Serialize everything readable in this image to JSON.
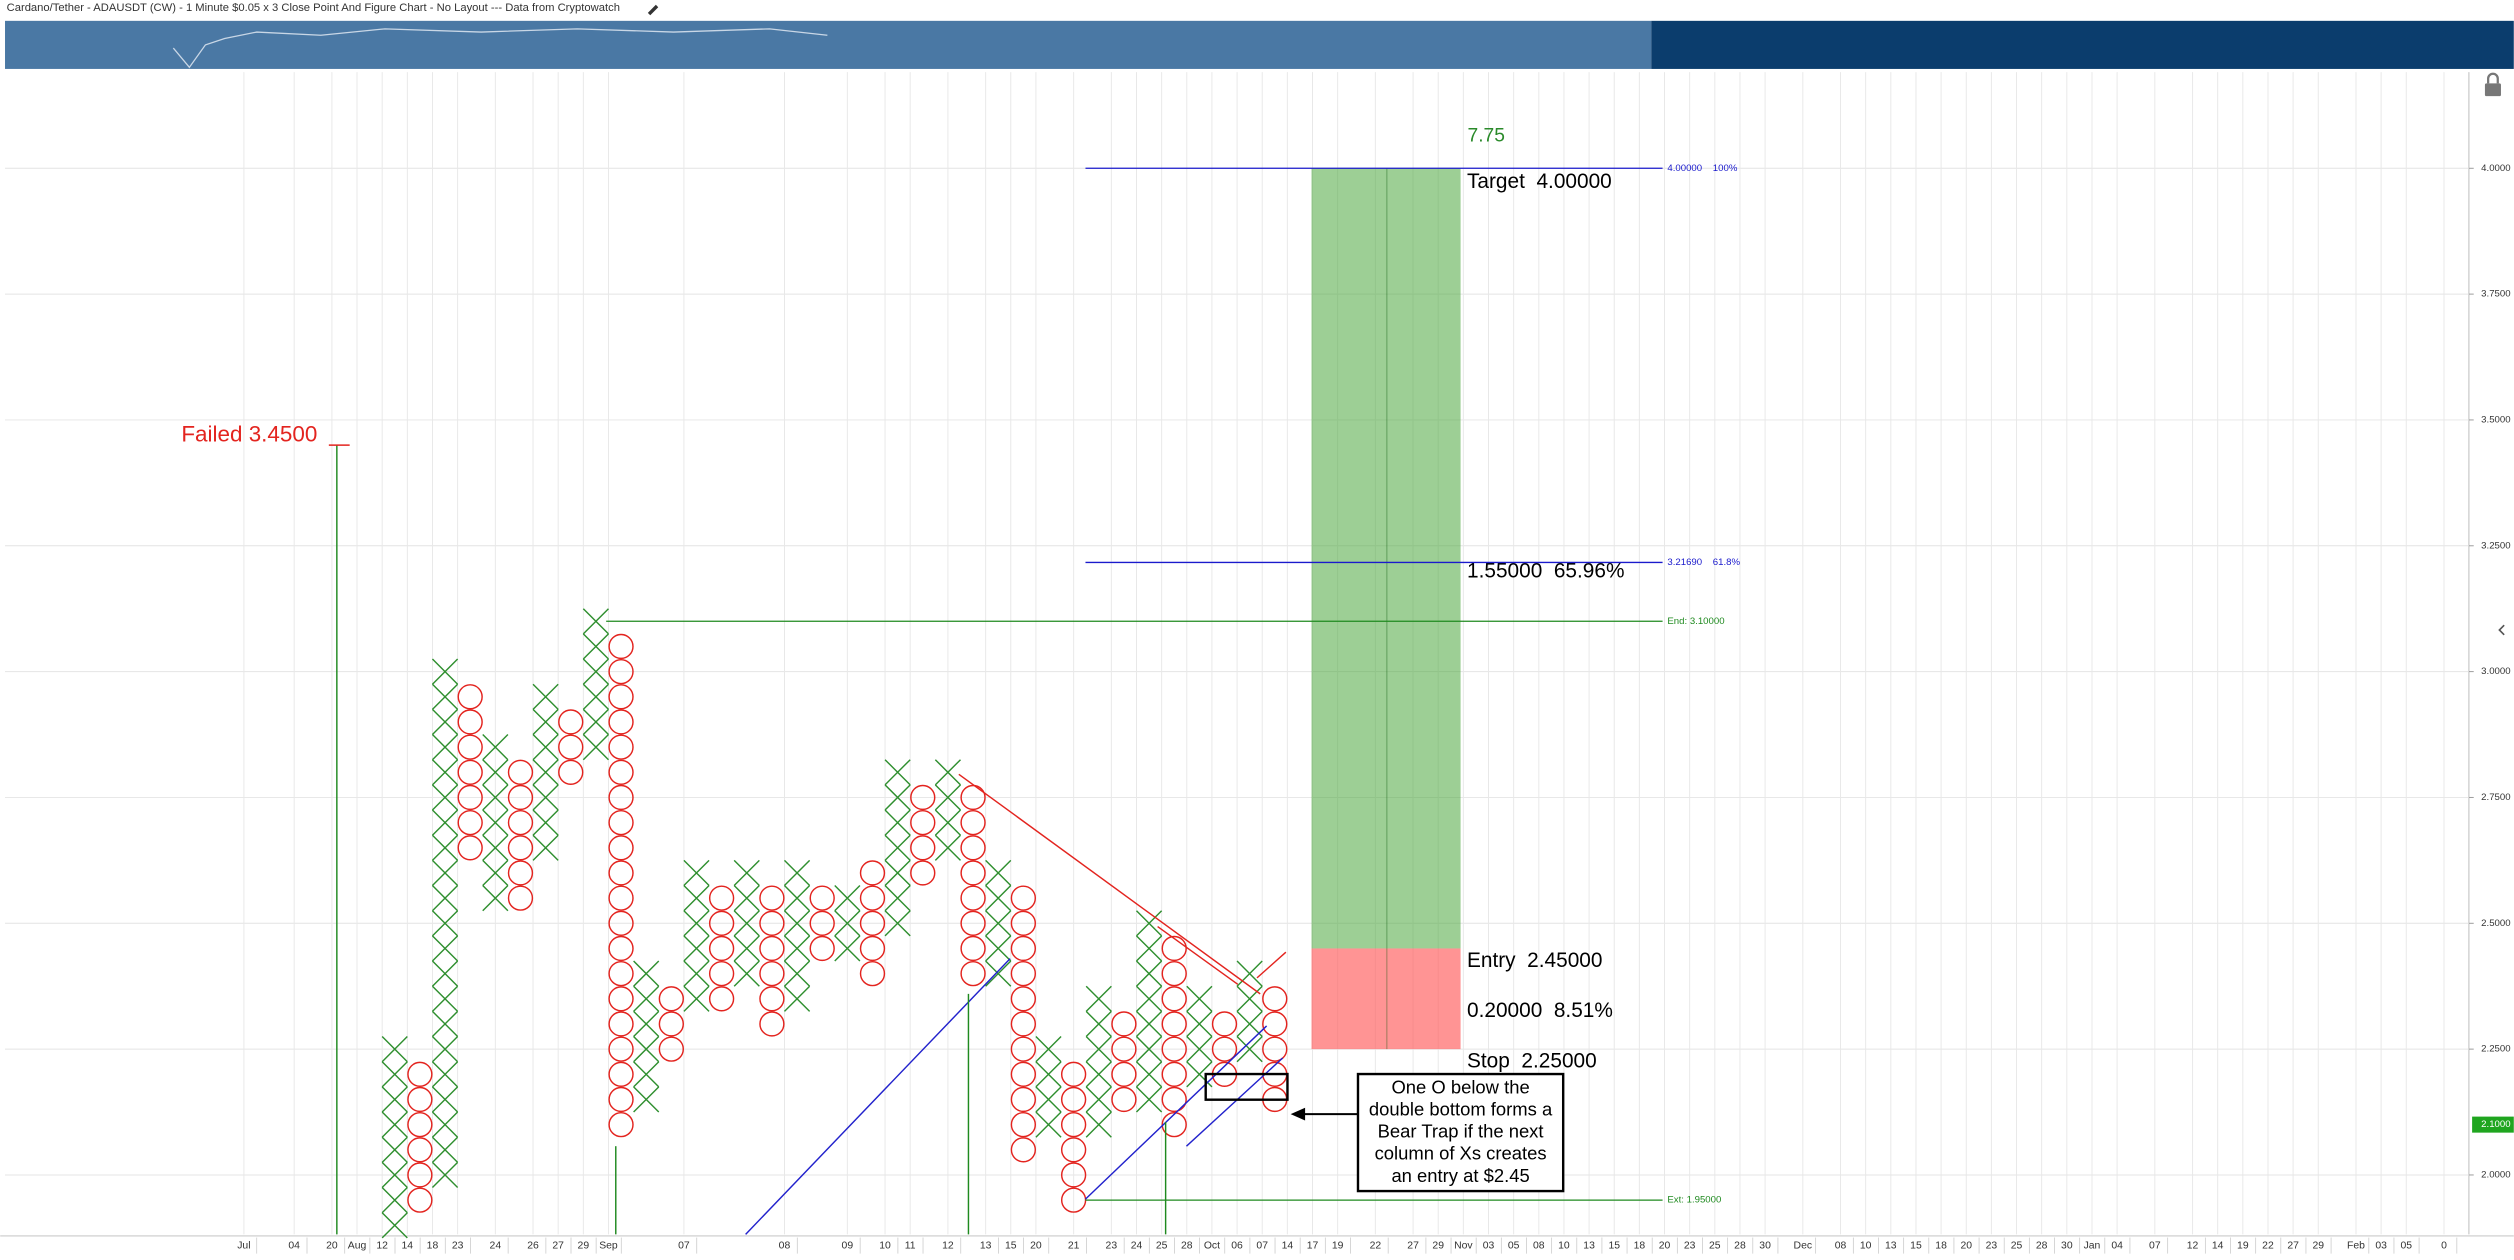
{
  "chart_data": {
    "type": "point-and-figure",
    "title": "Cardano/Tether - ADAUSDT (CW) - 1 Minute $0.05 x 3 Close Point And Figure Chart - No Layout --- Data from Cryptowatch",
    "box_size": 0.05,
    "x_color": "#2f8f2f",
    "o_color": "#e3241f",
    "grid": true,
    "ylim": [
      1.882,
      4.191
    ],
    "yticks": [
      {
        "value": 2.0,
        "label": "2.0000"
      },
      {
        "value": 2.25,
        "label": "2.2500"
      },
      {
        "value": 2.5,
        "label": "2.5000"
      },
      {
        "value": 2.75,
        "label": "2.7500"
      },
      {
        "value": 3.0,
        "label": "3.0000"
      },
      {
        "value": 3.25,
        "label": "3.2500"
      },
      {
        "value": 3.5,
        "label": "3.5000"
      },
      {
        "value": 3.75,
        "label": "3.7500"
      },
      {
        "value": 4.0,
        "label": "4.0000"
      }
    ],
    "xlim": [
      -15.5,
      82.3
    ],
    "xticks": [
      {
        "value": -6,
        "label": "Jul"
      },
      {
        "value": -4,
        "label": "04"
      },
      {
        "value": -2.5,
        "label": "20"
      },
      {
        "value": -1.5,
        "label": "Aug"
      },
      {
        "value": -0.5,
        "label": "12"
      },
      {
        "value": 0.5,
        "label": "14"
      },
      {
        "value": 1.5,
        "label": "18"
      },
      {
        "value": 2.5,
        "label": "23"
      },
      {
        "value": 4,
        "label": "24"
      },
      {
        "value": 5.5,
        "label": "26"
      },
      {
        "value": 6.5,
        "label": "27"
      },
      {
        "value": 7.5,
        "label": "29"
      },
      {
        "value": 8.5,
        "label": "Sep"
      },
      {
        "value": 11.5,
        "label": "07"
      },
      {
        "value": 15.5,
        "label": "08"
      },
      {
        "value": 18,
        "label": "09"
      },
      {
        "value": 19.5,
        "label": "10"
      },
      {
        "value": 20.5,
        "label": "11"
      },
      {
        "value": 22,
        "label": "12"
      },
      {
        "value": 23.5,
        "label": "13"
      },
      {
        "value": 24.5,
        "label": "15"
      },
      {
        "value": 25.5,
        "label": "20"
      },
      {
        "value": 27,
        "label": "21"
      },
      {
        "value": 28.5,
        "label": "23"
      },
      {
        "value": 29.5,
        "label": "24"
      },
      {
        "value": 30.5,
        "label": "25"
      },
      {
        "value": 31.5,
        "label": "28"
      },
      {
        "value": 32.5,
        "label": "Oct"
      },
      {
        "value": 33.5,
        "label": "06"
      },
      {
        "value": 34.5,
        "label": "07"
      },
      {
        "value": 35.5,
        "label": "14"
      },
      {
        "value": 36.5,
        "label": "17"
      },
      {
        "value": 37.5,
        "label": "19"
      },
      {
        "value": 39,
        "label": "22"
      },
      {
        "value": 40.5,
        "label": "27"
      },
      {
        "value": 41.5,
        "label": "29"
      },
      {
        "value": 42.5,
        "label": "Nov"
      },
      {
        "value": 43.5,
        "label": "03"
      },
      {
        "value": 44.5,
        "label": "05"
      },
      {
        "value": 45.5,
        "label": "08"
      },
      {
        "value": 46.5,
        "label": "10"
      },
      {
        "value": 47.5,
        "label": "13"
      },
      {
        "value": 48.5,
        "label": "15"
      },
      {
        "value": 49.5,
        "label": "18"
      },
      {
        "value": 50.5,
        "label": "20"
      },
      {
        "value": 51.5,
        "label": "23"
      },
      {
        "value": 52.5,
        "label": "25"
      },
      {
        "value": 53.5,
        "label": "28"
      },
      {
        "value": 54.5,
        "label": "30"
      },
      {
        "value": 56,
        "label": "Dec"
      },
      {
        "value": 57.5,
        "label": "08"
      },
      {
        "value": 58.5,
        "label": "10"
      },
      {
        "value": 59.5,
        "label": "13"
      },
      {
        "value": 60.5,
        "label": "15"
      },
      {
        "value": 61.5,
        "label": "18"
      },
      {
        "value": 62.5,
        "label": "20"
      },
      {
        "value": 63.5,
        "label": "23"
      },
      {
        "value": 64.5,
        "label": "25"
      },
      {
        "value": 65.5,
        "label": "28"
      },
      {
        "value": 66.5,
        "label": "30"
      },
      {
        "value": 67.5,
        "label": "Jan"
      },
      {
        "value": 68.5,
        "label": "04"
      },
      {
        "value": 70,
        "label": "07"
      },
      {
        "value": 71.5,
        "label": "12"
      },
      {
        "value": 72.5,
        "label": "14"
      },
      {
        "value": 73.5,
        "label": "19"
      },
      {
        "value": 74.5,
        "label": "22"
      },
      {
        "value": 75.5,
        "label": "27"
      },
      {
        "value": 76.5,
        "label": "29"
      },
      {
        "value": 78,
        "label": "Feb"
      },
      {
        "value": 79,
        "label": "03"
      },
      {
        "value": 80,
        "label": "05"
      },
      {
        "value": 81.5,
        "label": "0"
      }
    ],
    "columns": [
      {
        "type": "X",
        "low": 1.9,
        "high": 2.25
      },
      {
        "type": "O",
        "low": 1.95,
        "high": 2.2
      },
      {
        "type": "X",
        "low": 2.0,
        "high": 3.0
      },
      {
        "type": "O",
        "low": 2.65,
        "high": 2.95
      },
      {
        "type": "X",
        "low": 2.55,
        "high": 2.85
      },
      {
        "type": "O",
        "low": 2.55,
        "high": 2.8
      },
      {
        "type": "X",
        "low": 2.65,
        "high": 2.95
      },
      {
        "type": "O",
        "low": 2.8,
        "high": 2.9
      },
      {
        "type": "X",
        "low": 2.85,
        "high": 3.1
      },
      {
        "type": "O",
        "low": 2.1,
        "high": 3.05
      },
      {
        "type": "X",
        "low": 2.15,
        "high": 2.4
      },
      {
        "type": "O",
        "low": 2.25,
        "high": 2.35
      },
      {
        "type": "X",
        "low": 2.35,
        "high": 2.6
      },
      {
        "type": "O",
        "low": 2.35,
        "high": 2.55
      },
      {
        "type": "X",
        "low": 2.4,
        "high": 2.6
      },
      {
        "type": "O",
        "low": 2.3,
        "high": 2.55
      },
      {
        "type": "X",
        "low": 2.35,
        "high": 2.6
      },
      {
        "type": "O",
        "low": 2.45,
        "high": 2.55
      },
      {
        "type": "X",
        "low": 2.45,
        "high": 2.55
      },
      {
        "type": "O",
        "low": 2.4,
        "high": 2.6
      },
      {
        "type": "X",
        "low": 2.5,
        "high": 2.8
      },
      {
        "type": "O",
        "low": 2.6,
        "high": 2.75
      },
      {
        "type": "X",
        "low": 2.65,
        "high": 2.8
      },
      {
        "type": "O",
        "low": 2.4,
        "high": 2.75
      },
      {
        "type": "X",
        "low": 2.4,
        "high": 2.6
      },
      {
        "type": "O",
        "low": 2.05,
        "high": 2.55
      },
      {
        "type": "X",
        "low": 2.1,
        "high": 2.25
      },
      {
        "type": "O",
        "low": 1.95,
        "high": 2.2
      },
      {
        "type": "X",
        "low": 2.1,
        "high": 2.35
      },
      {
        "type": "O",
        "low": 2.15,
        "high": 2.3
      },
      {
        "type": "X",
        "low": 2.15,
        "high": 2.5
      },
      {
        "type": "O",
        "low": 2.1,
        "high": 2.45
      },
      {
        "type": "X",
        "low": 2.2,
        "high": 2.35
      },
      {
        "type": "O",
        "low": 2.2,
        "high": 2.3
      },
      {
        "type": "X",
        "low": 2.25,
        "high": 2.4
      },
      {
        "type": "O",
        "low": 2.15,
        "high": 2.35
      }
    ],
    "levels": [
      {
        "value": 4.0,
        "label": "4.00000    100%",
        "color": "#1a1acc"
      },
      {
        "value": 3.2169,
        "label": "3.21690    61.8%",
        "color": "#1a1acc"
      },
      {
        "value": 3.1,
        "label": "End: 3.10000",
        "color": "#1f8a1f"
      },
      {
        "value": 1.95,
        "label": "Ext: 1.95000",
        "color": "#1f8a1f"
      }
    ],
    "failed": {
      "value": 3.45,
      "label": "Failed 3.4500"
    },
    "position": {
      "target": 4.0,
      "entry": 2.45,
      "stop": 2.25,
      "ratio_label": "7.75",
      "target_label": "Target  4.00000",
      "reward_label": "1.55000  65.96%",
      "entry_label": "Entry  2.45000",
      "risk_label": "0.20000  8.51%",
      "stop_label": "Stop  2.25000"
    },
    "note": {
      "lines": [
        "One O below the",
        "double bottom forms a",
        "Bear Trap if the next",
        "column of Xs creates",
        "an entry at $2.45"
      ]
    },
    "last_price": {
      "value": 2.1,
      "label": "2.1000"
    }
  }
}
